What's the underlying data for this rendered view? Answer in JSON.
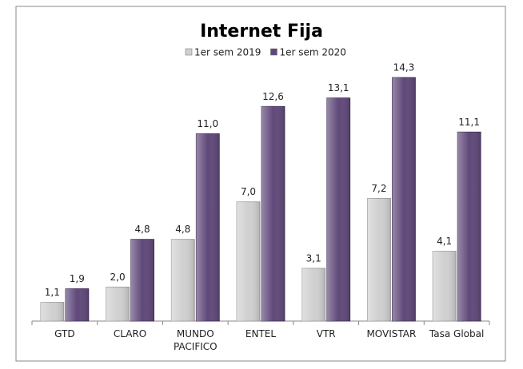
{
  "chart_data": {
    "type": "bar",
    "title": "Internet Fija",
    "categories": [
      "GTD",
      "CLARO",
      "MUNDO PACIFICO",
      "ENTEL",
      "VTR",
      "MOVISTAR",
      "Tasa Global"
    ],
    "series": [
      {
        "name": "1er sem 2019",
        "color": "#d0d0d0",
        "values": [
          1.1,
          2.0,
          4.8,
          7.0,
          3.1,
          7.2,
          4.1
        ],
        "value_labels": [
          "1,1",
          "2,0",
          "4,8",
          "7,0",
          "3,1",
          "7,2",
          "4,1"
        ]
      },
      {
        "name": "1er sem 2020",
        "color": "#60497a",
        "values": [
          1.9,
          4.8,
          11.0,
          12.6,
          13.1,
          14.3,
          11.1
        ],
        "value_labels": [
          "1,9",
          "4,8",
          "11,0",
          "12,6",
          "13,1",
          "14,3",
          "11,1"
        ]
      }
    ]
  }
}
